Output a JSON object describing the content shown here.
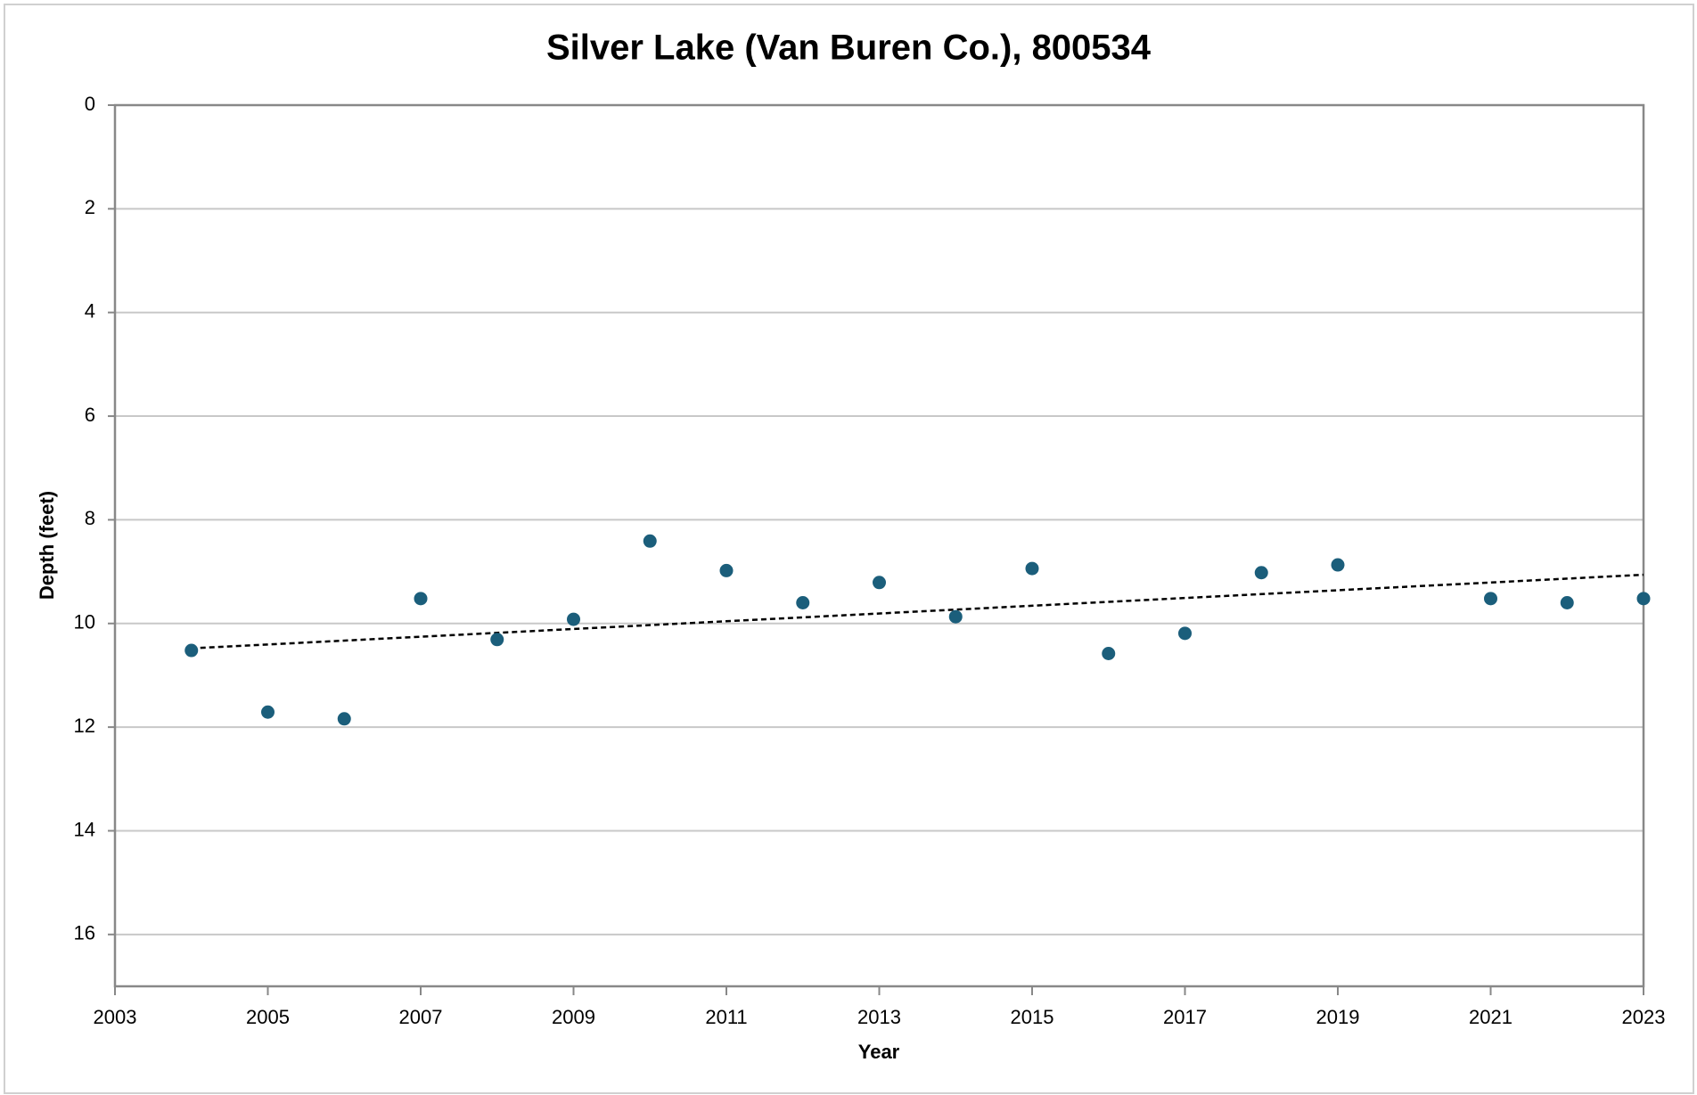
{
  "chart_data": {
    "type": "scatter",
    "title": "Silver Lake (Van Buren Co.), 800534",
    "x_label": "Year",
    "y_label": "Depth (feet)",
    "x": [
      2004,
      2005,
      2006,
      2007,
      2008,
      2009,
      2010,
      2011,
      2012,
      2013,
      2014,
      2015,
      2016,
      2017,
      2018,
      2019,
      2021,
      2022,
      2023
    ],
    "values": [
      10.52,
      11.71,
      11.84,
      9.52,
      10.31,
      9.92,
      8.41,
      8.98,
      9.6,
      9.21,
      9.87,
      8.94,
      10.58,
      10.19,
      9.02,
      8.87,
      9.52,
      9.6,
      9.52
    ],
    "color": "#1b5e7b",
    "trendline": {
      "x": [
        2004,
        2023
      ],
      "values": [
        10.48,
        9.06
      ],
      "color": "#000000"
    },
    "xlim": [
      2003,
      2023
    ],
    "xticks": [
      2003,
      2005,
      2007,
      2009,
      2011,
      2013,
      2015,
      2017,
      2019,
      2021,
      2023
    ],
    "ylim": [
      0,
      17
    ],
    "yticks": [
      0,
      2,
      4,
      6,
      8,
      10,
      12,
      14,
      16
    ],
    "y_inverted": true,
    "grid": true
  }
}
